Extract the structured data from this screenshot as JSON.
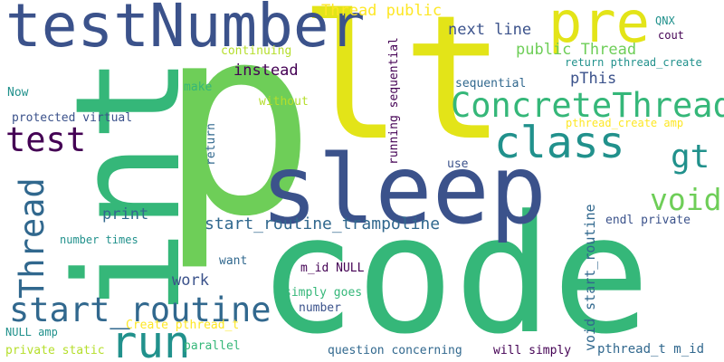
{
  "colors": {
    "background": "#ffffff",
    "purple": "#440154",
    "indigo": "#3b528b",
    "blue": "#31688e",
    "teal": "#21918c",
    "green": "#35b779",
    "lime": "#6ece58",
    "yellow": "#fde725",
    "yellow_dark": "#e3e418"
  },
  "words": [
    "code",
    "lt",
    "p",
    "int",
    "sleep",
    "testNumber",
    "pre",
    "ConcreteThread",
    "class",
    "test",
    "run",
    "start_routine",
    "Thread",
    "void",
    "gt",
    "start_routine_trampoline",
    "Thread public",
    "next line",
    "public Thread",
    "pThis",
    "QNX",
    "cout",
    "return pthread_create",
    "instead",
    "continuing",
    "make",
    "Now",
    "without",
    "sequential",
    "running sequential",
    "protected virtual",
    "pthread_create amp",
    "return",
    "use",
    "void start_routine",
    "print",
    "endl private",
    "want",
    "m_id NULL",
    "number times",
    "work",
    "simply goes",
    "number",
    "Create pthread_t",
    "NULL amp",
    "parallel",
    "private static",
    "question concerning",
    "will simply",
    "pthread_t m_id"
  ]
}
